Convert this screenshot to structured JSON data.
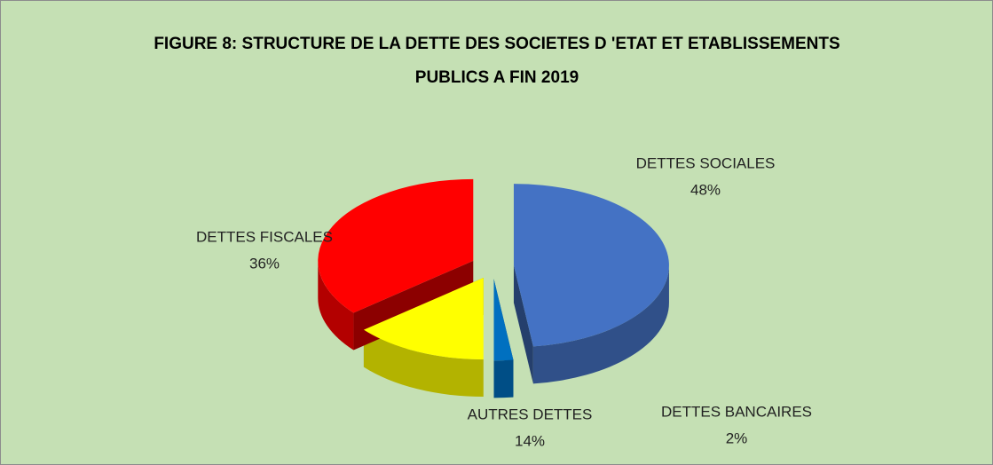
{
  "chart_data": {
    "type": "pie3d",
    "title": [
      "FIGURE 8: STRUCTURE DE LA DETTE DES SOCIETES D 'ETAT ET ETABLISSEMENTS",
      "PUBLICS A FIN 2019"
    ],
    "categories": [
      "DETTES SOCIALES",
      "DETTES BANCAIRES",
      "AUTRES DETTES",
      "DETTES FISCALES"
    ],
    "values": [
      48,
      2,
      14,
      36
    ],
    "value_labels": [
      "48%",
      "2%",
      "14%",
      "36%"
    ],
    "colors": [
      "#4472c4",
      "#0070c0",
      "#ffff00",
      "#ff0000"
    ]
  }
}
